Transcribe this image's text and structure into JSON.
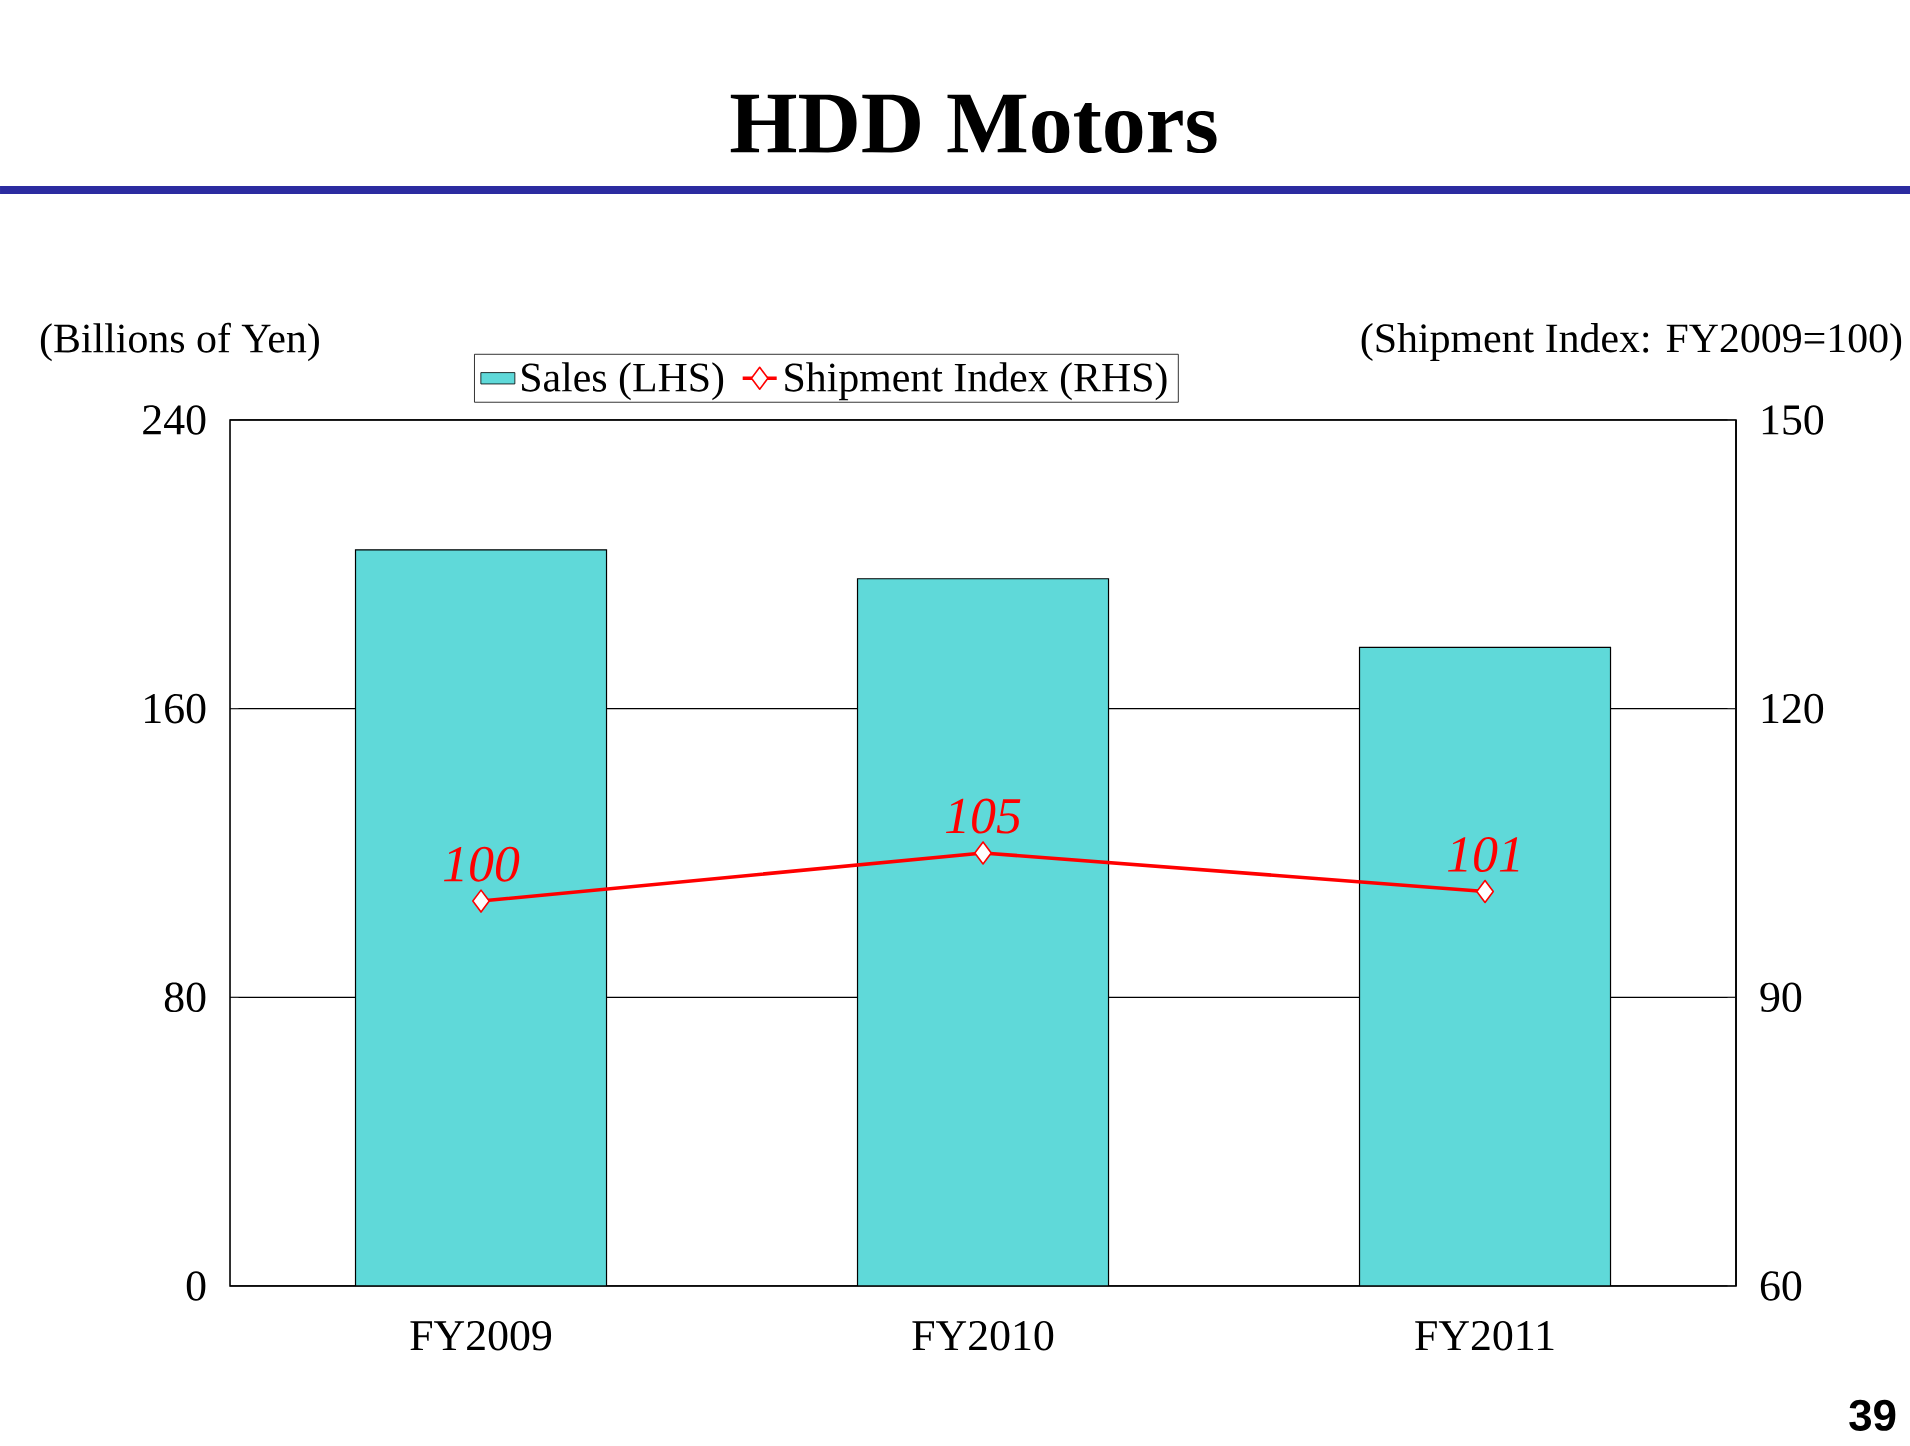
{
  "chart_data": {
    "type": "bar",
    "title": "HDD Motors",
    "ylabel": "(Billions of Yen)",
    "y2label": "(Shipment Index: FY2009=100)",
    "categories": [
      "FY2009",
      "FY2010",
      "FY2011"
    ],
    "series": [
      {
        "name": "Sales (LHS)",
        "color": "#5fd9d9",
        "values": [
          204,
          196,
          177
        ]
      },
      {
        "name": "Shipment Index (RHS)",
        "type": "line",
        "axis": "y2",
        "color": "#ff0000",
        "values": [
          100,
          105,
          101
        ],
        "value_labels": [
          "100",
          "105",
          "101"
        ]
      }
    ],
    "ylim": [
      0,
      240
    ],
    "yticks": [
      0,
      80,
      160,
      240
    ],
    "y2lim": [
      60,
      150
    ],
    "y2ticks": [
      60,
      90,
      120,
      150
    ],
    "grid": "y",
    "legend": "top",
    "marker": "diamond",
    "line_style": "solid",
    "annotations": [
      "39"
    ]
  }
}
